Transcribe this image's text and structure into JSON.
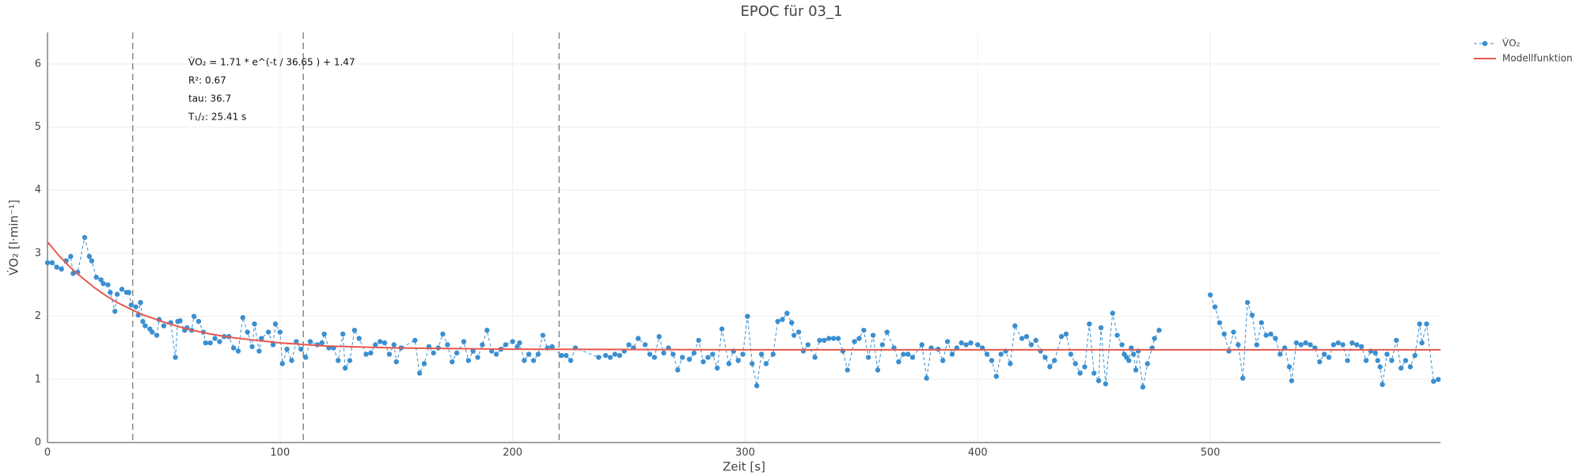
{
  "chart_data": {
    "type": "line",
    "title": "EPOC für 03_1",
    "x_label": "Zeit [s]",
    "y_label": "V̇O₂ [l·min⁻¹]",
    "xlim": [
      0,
      599
    ],
    "ylim": [
      0,
      6.5
    ],
    "xticks": [
      0,
      100,
      200,
      300,
      400,
      500
    ],
    "yticks": [
      0,
      1,
      2,
      3,
      4,
      5,
      6
    ],
    "grid": true,
    "legend": "top-right",
    "reference_lines": {
      "x": [
        36.65,
        110,
        220
      ],
      "color": "#888888"
    },
    "annotations": [
      "V̇O₂ = 1.71 * e^(-t / 36.65 ) + 1.47",
      "R²: 0.67",
      "tau: 36.7",
      "T₁/₂: 25.41 s"
    ],
    "series": [
      {
        "name": "V̇O₂",
        "color": "#3a8fd0",
        "markers": true,
        "dashed": true,
        "x": [
          0,
          2,
          4,
          6,
          8,
          10,
          11,
          13,
          16,
          18,
          19,
          21,
          23,
          24,
          26,
          27,
          29,
          30,
          32,
          34,
          35,
          36,
          38,
          39,
          40,
          41,
          42,
          44,
          45,
          47,
          48,
          50,
          53,
          55,
          56,
          57,
          59,
          60,
          62,
          63,
          65,
          67,
          68,
          70,
          72,
          74,
          76,
          78,
          80,
          82,
          84,
          86,
          88,
          89,
          91,
          92,
          95,
          97,
          98,
          100,
          101,
          103,
          105,
          107,
          109,
          111,
          113,
          116,
          118,
          119,
          121,
          123,
          125,
          127,
          128,
          130,
          132,
          134,
          137,
          139,
          141,
          143,
          145,
          147,
          149,
          150,
          152,
          158,
          160,
          162,
          164,
          166,
          168,
          170,
          172,
          174,
          176,
          179,
          181,
          183,
          185,
          187,
          189,
          191,
          193,
          195,
          197,
          200,
          202,
          203,
          205,
          207,
          209,
          211,
          213,
          215,
          217,
          221,
          223,
          225,
          227,
          237,
          240,
          242,
          244,
          246,
          248,
          250,
          252,
          254,
          257,
          259,
          261,
          263,
          265,
          267,
          269,
          271,
          273,
          276,
          278,
          280,
          282,
          284,
          286,
          288,
          290,
          293,
          295,
          297,
          299,
          301,
          303,
          305,
          307,
          309,
          312,
          314,
          316,
          318,
          320,
          321,
          323,
          325,
          327,
          330,
          332,
          334,
          336,
          338,
          340,
          342,
          344,
          347,
          349,
          351,
          353,
          355,
          357,
          359,
          361,
          364,
          366,
          368,
          370,
          372,
          376,
          378,
          380,
          383,
          385,
          387,
          389,
          391,
          393,
          395,
          397,
          400,
          402,
          404,
          406,
          408,
          410,
          412,
          414,
          416,
          419,
          421,
          423,
          425,
          427,
          429,
          431,
          433,
          436,
          438,
          440,
          442,
          444,
          446,
          448,
          450,
          452,
          453,
          455,
          458,
          460,
          462,
          463,
          464,
          465,
          466,
          467,
          468,
          469,
          471,
          473,
          475,
          476,
          478,
          489,
          500,
          502,
          504,
          506,
          508,
          510,
          512,
          514,
          516,
          518,
          520,
          522,
          524,
          526,
          528,
          530,
          532,
          534,
          535,
          537,
          539,
          541,
          543,
          545,
          547,
          549,
          551,
          553,
          555,
          557,
          559,
          561,
          563,
          565,
          567,
          569,
          571,
          572,
          573,
          574,
          576,
          578,
          580,
          582,
          584,
          586,
          588,
          590,
          591,
          593,
          596,
          598
        ],
        "values": [
          2.85,
          2.85,
          2.78,
          2.75,
          2.88,
          2.95,
          2.68,
          2.7,
          3.25,
          2.95,
          2.88,
          2.62,
          2.58,
          2.52,
          2.5,
          2.38,
          2.08,
          2.35,
          2.43,
          2.38,
          2.38,
          2.18,
          2.15,
          2.02,
          2.22,
          1.92,
          1.85,
          1.8,
          1.75,
          1.7,
          1.95,
          1.85,
          1.9,
          1.35,
          1.92,
          1.93,
          1.78,
          1.82,
          1.78,
          2.0,
          1.92,
          1.75,
          1.58,
          1.58,
          1.65,
          1.6,
          1.68,
          1.68,
          1.5,
          1.45,
          1.98,
          1.75,
          1.52,
          1.88,
          1.45,
          1.65,
          1.75,
          1.55,
          1.88,
          1.75,
          1.25,
          1.48,
          1.3,
          1.6,
          1.48,
          1.35,
          1.6,
          1.55,
          1.58,
          1.72,
          1.5,
          1.5,
          1.3,
          1.72,
          1.18,
          1.3,
          1.78,
          1.65,
          1.4,
          1.42,
          1.55,
          1.6,
          1.58,
          1.4,
          1.55,
          1.28,
          1.5,
          1.62,
          1.1,
          1.25,
          1.52,
          1.42,
          1.5,
          1.72,
          1.55,
          1.28,
          1.42,
          1.6,
          1.3,
          1.45,
          1.35,
          1.55,
          1.78,
          1.45,
          1.4,
          1.48,
          1.55,
          1.6,
          1.52,
          1.58,
          1.3,
          1.4,
          1.3,
          1.4,
          1.7,
          1.5,
          1.52,
          1.38,
          1.38,
          1.3,
          1.5,
          1.35,
          1.38,
          1.35,
          1.4,
          1.38,
          1.45,
          1.55,
          1.5,
          1.65,
          1.55,
          1.4,
          1.35,
          1.68,
          1.42,
          1.5,
          1.4,
          1.15,
          1.35,
          1.32,
          1.42,
          1.62,
          1.28,
          1.35,
          1.4,
          1.18,
          1.8,
          1.25,
          1.45,
          1.3,
          1.4,
          2.0,
          1.25,
          0.9,
          1.4,
          1.25,
          1.4,
          1.92,
          1.95,
          2.05,
          1.9,
          1.7,
          1.75,
          1.45,
          1.55,
          1.35,
          1.62,
          1.62,
          1.65,
          1.65,
          1.65,
          1.45,
          1.15,
          1.6,
          1.65,
          1.78,
          1.35,
          1.7,
          1.15,
          1.55,
          1.75,
          1.5,
          1.28,
          1.4,
          1.4,
          1.35,
          1.55,
          1.02,
          1.5,
          1.48,
          1.3,
          1.6,
          1.4,
          1.5,
          1.58,
          1.55,
          1.58,
          1.55,
          1.5,
          1.4,
          1.3,
          1.05,
          1.4,
          1.45,
          1.25,
          1.85,
          1.65,
          1.68,
          1.55,
          1.62,
          1.45,
          1.35,
          1.2,
          1.3,
          1.68,
          1.72,
          1.4,
          1.25,
          1.1,
          1.2,
          1.88,
          1.1,
          0.98,
          1.82,
          0.93,
          2.05,
          1.7,
          1.55,
          1.4,
          1.35,
          1.3,
          1.5,
          1.4,
          1.15,
          1.45,
          0.88,
          1.25,
          1.5,
          1.65,
          1.78,
          null,
          2.34,
          2.15,
          1.9,
          1.72,
          1.45,
          1.75,
          1.55,
          1.02,
          2.22,
          2.02,
          1.55,
          1.9,
          1.7,
          1.72,
          1.65,
          1.4,
          1.5,
          1.2,
          0.98,
          1.58,
          1.55,
          1.58,
          1.55,
          1.5,
          1.28,
          1.4,
          1.35,
          1.55,
          1.58,
          1.55,
          1.3,
          1.58,
          1.55,
          1.52,
          1.3,
          1.45,
          1.42,
          1.3,
          1.2,
          0.92,
          1.4,
          1.3,
          1.62,
          1.18,
          1.3,
          1.2,
          1.38,
          1.88,
          1.58,
          1.88,
          0.97,
          1.0
        ]
      },
      {
        "name": "Modellfunktion",
        "color": "#e8574c",
        "markers": false,
        "dashed": false,
        "x": [
          0,
          5,
          10,
          15,
          20,
          25,
          30,
          40,
          50,
          60,
          70,
          80,
          100,
          120,
          150,
          200,
          300,
          599
        ],
        "values": [
          3.18,
          2.96,
          2.77,
          2.61,
          2.46,
          2.33,
          2.22,
          2.04,
          1.91,
          1.8,
          1.72,
          1.66,
          1.58,
          1.53,
          1.5,
          1.48,
          1.47,
          1.47
        ]
      }
    ]
  }
}
